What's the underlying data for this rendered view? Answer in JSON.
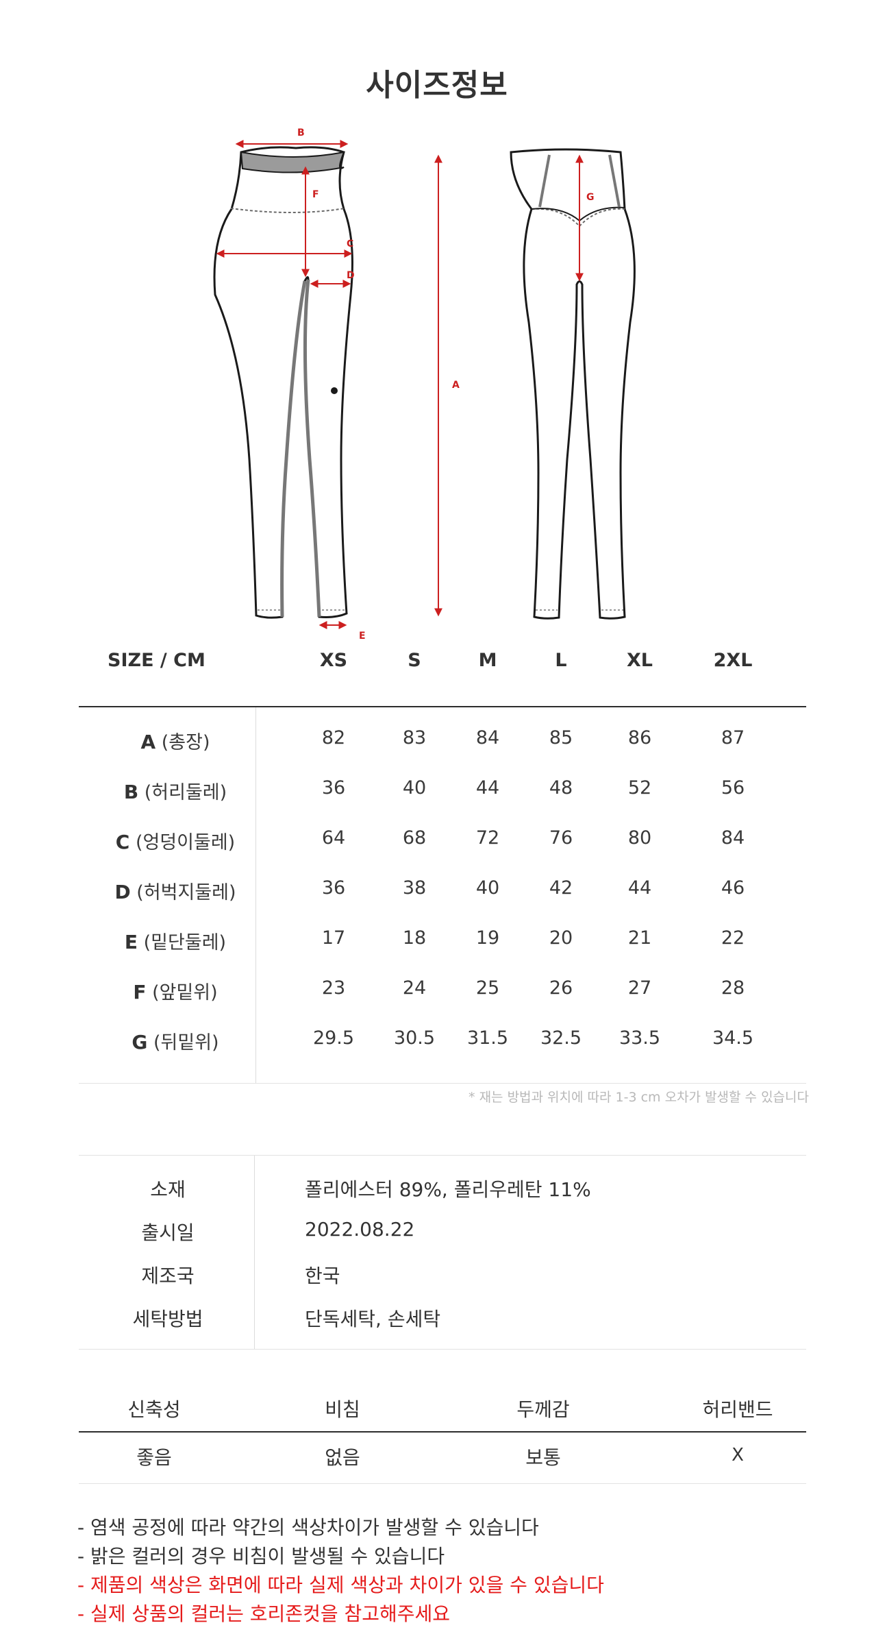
{
  "page": {
    "title": "사이즈정보"
  },
  "diagram_labels": {
    "a": "A",
    "b": "B",
    "c": "C",
    "d": "D",
    "e": "E",
    "f": "F",
    "g": "G"
  },
  "size_table": {
    "corner": "SIZE / CM",
    "sizes": [
      "XS",
      "S",
      "M",
      "L",
      "XL",
      "2XL"
    ],
    "rows": [
      {
        "code": "A",
        "name": "(총장)",
        "values": [
          "82",
          "83",
          "84",
          "85",
          "86",
          "87"
        ]
      },
      {
        "code": "B",
        "name": "(허리둘레)",
        "values": [
          "36",
          "40",
          "44",
          "48",
          "52",
          "56"
        ]
      },
      {
        "code": "C",
        "name": "(엉덩이둘레)",
        "values": [
          "64",
          "68",
          "72",
          "76",
          "80",
          "84"
        ]
      },
      {
        "code": "D",
        "name": "(허벅지둘레)",
        "values": [
          "36",
          "38",
          "40",
          "42",
          "44",
          "46"
        ]
      },
      {
        "code": "E",
        "name": "(밑단둘레)",
        "values": [
          "17",
          "18",
          "19",
          "20",
          "21",
          "22"
        ]
      },
      {
        "code": "F",
        "name": "(앞밑위)",
        "values": [
          "23",
          "24",
          "25",
          "26",
          "27",
          "28"
        ]
      },
      {
        "code": "G",
        "name": "(뒤밑위)",
        "values": [
          "29.5",
          "30.5",
          "31.5",
          "32.5",
          "33.5",
          "34.5"
        ]
      }
    ],
    "note": "* 재는 방법과 위치에 따라 1-3 cm 오차가 발생할 수 있습니다"
  },
  "product_info": [
    {
      "key": "소재",
      "value": "폴리에스터 89%, 폴리우레탄 11%"
    },
    {
      "key": "출시일",
      "value": "2022.08.22"
    },
    {
      "key": "제조국",
      "value": "한국"
    },
    {
      "key": "세탁방법",
      "value": "단독세탁, 손세탁"
    }
  ],
  "attributes": {
    "headers": [
      "신축성",
      "비침",
      "두께감",
      "허리밴드"
    ],
    "values": [
      "좋음",
      "없음",
      "보통",
      "X"
    ]
  },
  "notes": [
    {
      "text": "- 염색 공정에 따라 약간의 색상차이가 발생할 수 있습니다",
      "color": "black"
    },
    {
      "text": "- 밝은 컬러의 경우 비침이 발생될 수 있습니다",
      "color": "black"
    },
    {
      "text": "- 제품의 색상은 화면에 따라 실제 색상과 차이가 있을 수 있습니다",
      "color": "red"
    },
    {
      "text": "- 실제 상품의 컬러는 호리존컷을 참고해주세요",
      "color": "red"
    }
  ],
  "colors": {
    "accent_red": "#cc1f1f",
    "note_red": "#e51b1b"
  }
}
